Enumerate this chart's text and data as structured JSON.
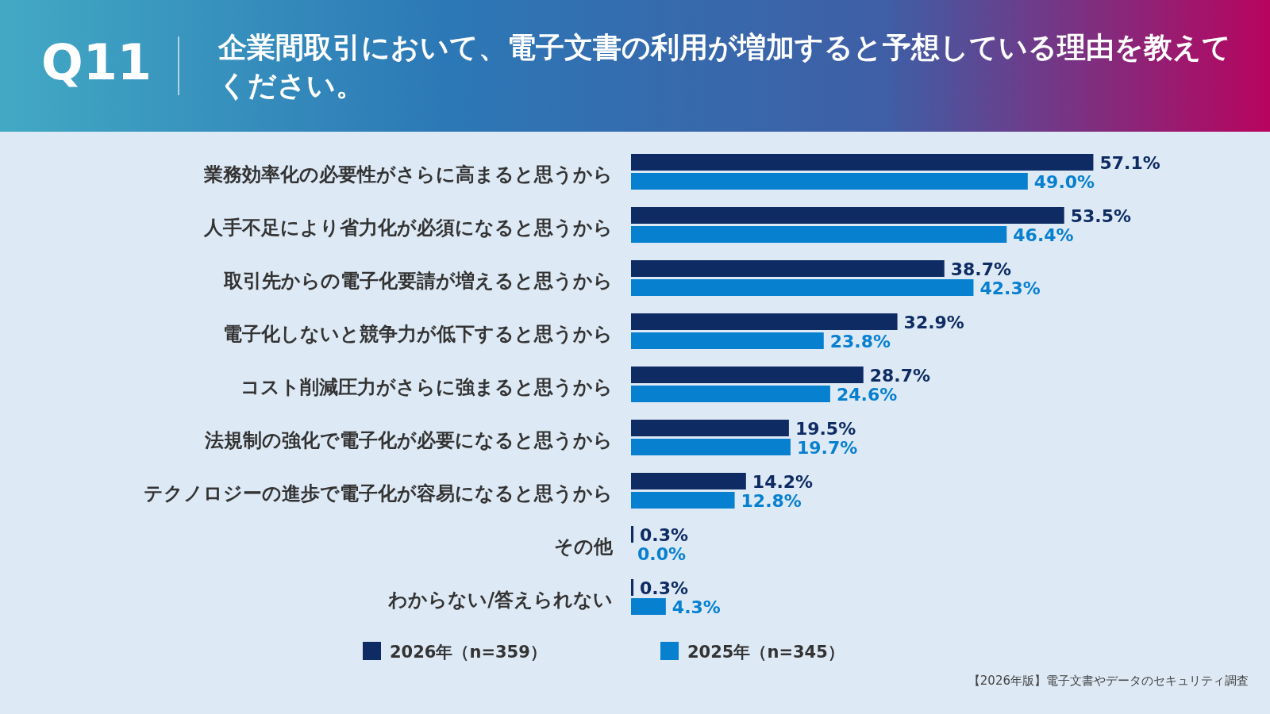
{
  "chart_data": {
    "type": "bar",
    "orientation": "horizontal",
    "title": "Q11",
    "subtitle": "企業間取引において、電子文書の利用が増加すると予想している理由を教えてください。",
    "categories": [
      "業務効率化の必要性がさらに高まると思うから",
      "人手不足により省力化が必須になると思うから",
      "取引先からの電子化要請が増えると思うから",
      "電子化しないと競争力が低下すると思うから",
      "コスト削減圧力がさらに強まると思うから",
      "法規制の強化で電子化が必要になると思うから",
      "テクノロジーの進歩で電子化が容易になると思うから",
      "その他",
      "わからない/答えられない"
    ],
    "series": [
      {
        "name": "2026年（n=359）",
        "color": "#0e2c63",
        "values": [
          57.1,
          53.5,
          38.7,
          32.9,
          28.7,
          19.5,
          14.2,
          0.3,
          0.3
        ],
        "value_labels": [
          "57.1%",
          "53.5%",
          "38.7%",
          "32.9%",
          "28.7%",
          "19.5%",
          "14.2%",
          "0.3%",
          "0.3%"
        ]
      },
      {
        "name": "2025年（n=345）",
        "color": "#0780d0",
        "values": [
          49.0,
          46.4,
          42.3,
          23.8,
          24.6,
          19.7,
          12.8,
          0.0,
          4.3
        ],
        "value_labels": [
          "49.0%",
          "46.4%",
          "42.3%",
          "23.8%",
          "24.6%",
          "19.7%",
          "12.8%",
          "0.0%",
          "4.3%"
        ]
      }
    ],
    "legend": "bottom",
    "annotations": [
      "【2026年版】電子文書やデータのセキュリティ調査"
    ]
  }
}
